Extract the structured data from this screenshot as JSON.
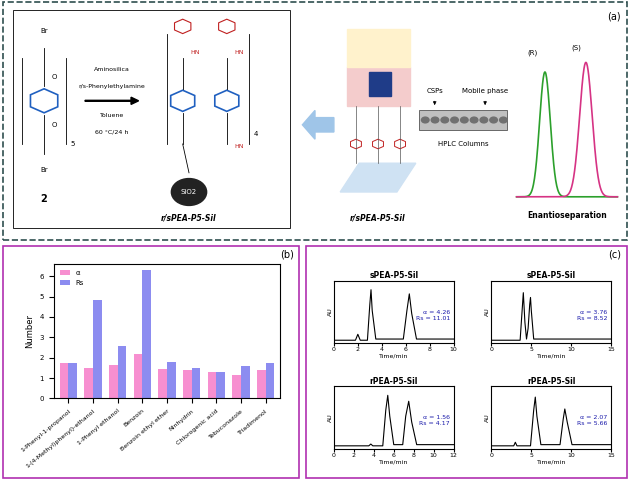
{
  "diagram": {
    "panel_labels": [
      "(a)",
      "(b)",
      "(c)"
    ],
    "synthesis": {
      "monomer": "2",
      "atoms": [
        "Br",
        "O",
        "HN"
      ],
      "repeat_counts": [
        "5",
        "4"
      ],
      "reagents": [
        "Aminosilica",
        "r/s-Phenylethylamine"
      ],
      "conditions": [
        "Toluene",
        "60 °C/24 h"
      ],
      "product": "r/sPEA-P5-Sil",
      "support": "SiO2"
    },
    "scheme": {
      "material": "r/sPEA-P5-Sil",
      "column_labels": [
        "CSPs",
        "Mobile phase"
      ],
      "column": "HPLC Columns",
      "enantiomers": [
        "(R)",
        "(S)"
      ],
      "result": "Enantioseparation"
    }
  },
  "chart_data": [
    {
      "type": "bar",
      "ylabel": "Number",
      "legend": "upper left",
      "categories": [
        "1-Phenyl-1-propanol",
        "1-(4-Methyl)phenyl)-ethanol",
        "1-Phenyl ethanol",
        "Benzoin",
        "Benzoin ethyl ether",
        "Ninhydrin",
        "Chlorogenic acid",
        "Tebuconazole",
        "Triadimenol"
      ],
      "series": [
        {
          "name": "α",
          "color": "#f78fd0",
          "values": [
            1.75,
            1.5,
            1.65,
            2.2,
            1.45,
            1.4,
            1.3,
            1.15,
            1.4
          ]
        },
        {
          "name": "Rs",
          "color": "#8c8cf0",
          "values": [
            1.75,
            4.85,
            2.55,
            6.3,
            1.8,
            1.5,
            1.3,
            1.6,
            1.75
          ]
        }
      ],
      "ylim": [
        0,
        6.6
      ],
      "yticks": [
        0,
        1,
        2,
        3,
        4,
        5,
        6
      ]
    },
    {
      "type": "line",
      "title": "sPEA-P5-Sil",
      "xlabel": "Time/min",
      "ylabel": "AU",
      "color": "#000000",
      "tick_labels": "x",
      "x": [
        0,
        1.8,
        2.0,
        2.2,
        2.8,
        3.0,
        3.1,
        3.2,
        3.5,
        5.8,
        6.1,
        6.3,
        6.5,
        6.9,
        10
      ],
      "values": [
        0,
        0,
        0.1,
        0,
        0,
        0.6,
        0.85,
        0.5,
        0.02,
        0.02,
        0.5,
        0.78,
        0.45,
        0.02,
        0.02
      ],
      "xlim": [
        0,
        10
      ],
      "xticks": [
        0,
        2,
        4,
        6,
        8,
        10
      ],
      "ylim": [
        -0.05,
        1.0
      ],
      "annotations": [
        "α = 4.26",
        "Rs = 11.01"
      ]
    },
    {
      "type": "line",
      "title": "sPEA-P5-Sil",
      "xlabel": "Time/min",
      "ylabel": "AU",
      "color": "#000000",
      "tick_labels": "x",
      "x": [
        0,
        3.6,
        3.8,
        4.0,
        4.2,
        4.4,
        4.6,
        4.8,
        4.9,
        5.0,
        5.3,
        15
      ],
      "values": [
        0,
        0,
        0.4,
        0.8,
        0.3,
        0.02,
        0.2,
        0.6,
        0.72,
        0.5,
        0.02,
        0.02
      ],
      "xlim": [
        0,
        15
      ],
      "xticks": [
        0,
        5,
        10,
        15
      ],
      "ylim": [
        -0.05,
        1.0
      ],
      "annotations": [
        "α = 3.76",
        "Rs = 8.52"
      ]
    },
    {
      "type": "line",
      "title": "rPEA-P5-Sil",
      "xlabel": "Time/min",
      "ylabel": "AU",
      "color": "#000000",
      "tick_labels": "x",
      "x": [
        0,
        3.5,
        3.7,
        3.9,
        4.9,
        5.2,
        5.4,
        5.6,
        6.0,
        6.9,
        7.2,
        7.5,
        7.8,
        8.3,
        12
      ],
      "values": [
        0,
        0,
        0.03,
        0,
        0,
        0.6,
        0.85,
        0.5,
        0.02,
        0.02,
        0.5,
        0.75,
        0.4,
        0.02,
        0.02
      ],
      "xlim": [
        0,
        12
      ],
      "xticks": [
        0,
        2,
        4,
        6,
        8,
        10,
        12
      ],
      "ylim": [
        -0.05,
        1.0
      ],
      "annotations": [
        "α = 1.56",
        "Rs = 4.17"
      ]
    },
    {
      "type": "line",
      "title": "rPEA-P5-Sil",
      "xlabel": "Time/min",
      "ylabel": "AU",
      "color": "#000000",
      "tick_labels": "x",
      "x": [
        0,
        2.8,
        3.0,
        3.2,
        4.9,
        5.3,
        5.5,
        5.7,
        6.2,
        8.6,
        9.0,
        9.2,
        9.5,
        10.1,
        15
      ],
      "values": [
        0,
        0,
        0.06,
        0,
        0,
        0.6,
        0.82,
        0.5,
        0.02,
        0.02,
        0.45,
        0.62,
        0.4,
        0.02,
        0.02
      ],
      "xlim": [
        0,
        15
      ],
      "xticks": [
        0,
        5,
        10,
        15
      ],
      "ylim": [
        -0.05,
        1.0
      ],
      "annotations": [
        "α = 2.07",
        "Rs = 5.66"
      ]
    }
  ]
}
